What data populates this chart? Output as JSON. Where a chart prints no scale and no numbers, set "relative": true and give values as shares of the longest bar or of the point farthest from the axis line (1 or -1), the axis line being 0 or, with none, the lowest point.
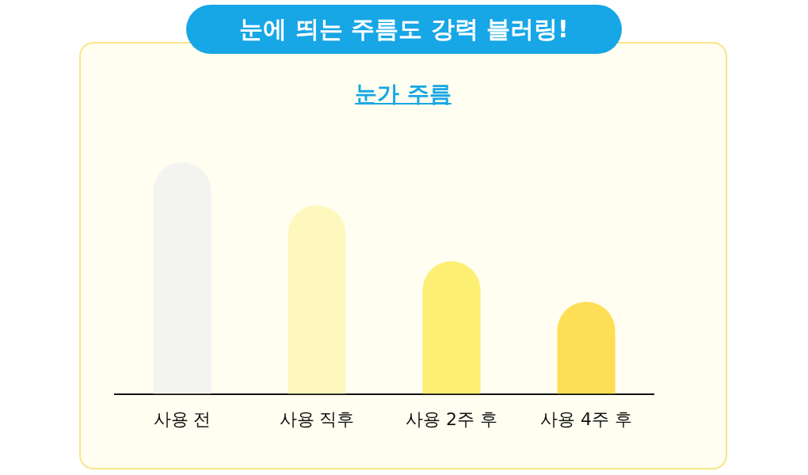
{
  "chart_data": {
    "type": "bar",
    "title": "눈에 띄는 주름도 강력 블러링!",
    "subtitle": "눈가 주름",
    "categories": [
      "사용 전",
      "사용 직후",
      "사용 2주 후",
      "사용 4주 후"
    ],
    "values": [
      1,
      0.815,
      0.573,
      0.398
    ],
    "colors": [
      "#f3f3f1",
      "#fef8bf",
      "#fdef73",
      "#fede55"
    ],
    "relative": true,
    "grid": false,
    "legend": false
  }
}
